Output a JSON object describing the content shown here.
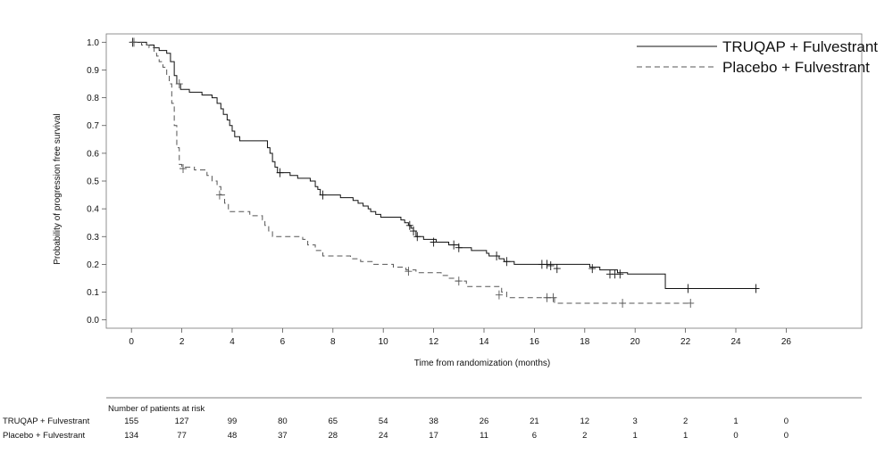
{
  "chart_data": {
    "type": "line",
    "xlabel": "Time from randomization (months)",
    "ylabel": "Probability of progression free survival",
    "xlim": [
      -1,
      29
    ],
    "ylim": [
      -0.03,
      1.03
    ],
    "x_ticks": [
      0,
      2,
      4,
      6,
      8,
      10,
      12,
      14,
      16,
      18,
      20,
      22,
      24,
      26
    ],
    "y_ticks": [
      "0.0",
      "0.1",
      "0.2",
      "0.3",
      "0.4",
      "0.5",
      "0.6",
      "0.7",
      "0.8",
      "0.9",
      "1.0"
    ],
    "legend_position": "top-right",
    "series": [
      {
        "name": "TRUQAP + Fulvestrant",
        "style": "solid",
        "color": "#111111",
        "steps": [
          [
            0,
            1.0
          ],
          [
            0.6,
            0.99
          ],
          [
            0.9,
            0.98
          ],
          [
            1.1,
            0.97
          ],
          [
            1.4,
            0.96
          ],
          [
            1.55,
            0.93
          ],
          [
            1.7,
            0.88
          ],
          [
            1.8,
            0.85
          ],
          [
            1.95,
            0.83
          ],
          [
            2.3,
            0.82
          ],
          [
            2.8,
            0.81
          ],
          [
            3.2,
            0.8
          ],
          [
            3.4,
            0.78
          ],
          [
            3.55,
            0.76
          ],
          [
            3.65,
            0.74
          ],
          [
            3.8,
            0.72
          ],
          [
            3.9,
            0.7
          ],
          [
            4.0,
            0.68
          ],
          [
            4.1,
            0.66
          ],
          [
            4.3,
            0.645
          ],
          [
            5.4,
            0.62
          ],
          [
            5.5,
            0.6
          ],
          [
            5.6,
            0.57
          ],
          [
            5.7,
            0.55
          ],
          [
            5.8,
            0.53
          ],
          [
            6.3,
            0.52
          ],
          [
            6.6,
            0.51
          ],
          [
            7.1,
            0.5
          ],
          [
            7.3,
            0.48
          ],
          [
            7.4,
            0.47
          ],
          [
            7.5,
            0.45
          ],
          [
            8.3,
            0.44
          ],
          [
            8.8,
            0.43
          ],
          [
            9.0,
            0.42
          ],
          [
            9.2,
            0.41
          ],
          [
            9.4,
            0.4
          ],
          [
            9.5,
            0.39
          ],
          [
            9.7,
            0.38
          ],
          [
            9.9,
            0.37
          ],
          [
            10.7,
            0.36
          ],
          [
            10.85,
            0.35
          ],
          [
            11.0,
            0.34
          ],
          [
            11.1,
            0.33
          ],
          [
            11.2,
            0.32
          ],
          [
            11.3,
            0.3
          ],
          [
            11.6,
            0.29
          ],
          [
            12.1,
            0.28
          ],
          [
            12.6,
            0.27
          ],
          [
            13.0,
            0.26
          ],
          [
            13.5,
            0.25
          ],
          [
            14.1,
            0.24
          ],
          [
            14.2,
            0.23
          ],
          [
            14.6,
            0.22
          ],
          [
            14.8,
            0.21
          ],
          [
            15.2,
            0.2
          ],
          [
            18.2,
            0.19
          ],
          [
            18.6,
            0.18
          ],
          [
            19.3,
            0.17
          ],
          [
            19.7,
            0.165
          ],
          [
            21.2,
            0.113
          ],
          [
            24.9,
            0.113
          ]
        ],
        "censor": [
          [
            0.05,
            1.0
          ],
          [
            5.9,
            0.53
          ],
          [
            7.6,
            0.45
          ],
          [
            11.05,
            0.34
          ],
          [
            11.2,
            0.32
          ],
          [
            11.35,
            0.3
          ],
          [
            12.0,
            0.28
          ],
          [
            12.8,
            0.27
          ],
          [
            13.0,
            0.26
          ],
          [
            14.5,
            0.23
          ],
          [
            14.9,
            0.21
          ],
          [
            16.3,
            0.2
          ],
          [
            16.5,
            0.2
          ],
          [
            16.65,
            0.195
          ],
          [
            16.9,
            0.185
          ],
          [
            18.3,
            0.185
          ],
          [
            19.0,
            0.165
          ],
          [
            19.2,
            0.165
          ],
          [
            19.4,
            0.165
          ],
          [
            22.1,
            0.113
          ],
          [
            24.8,
            0.113
          ]
        ]
      },
      {
        "name": "Placebo + Fulvestrant",
        "style": "dashed",
        "color": "#555555",
        "steps": [
          [
            0,
            1.0
          ],
          [
            0.4,
            0.99
          ],
          [
            0.7,
            0.98
          ],
          [
            0.9,
            0.96
          ],
          [
            1.0,
            0.95
          ],
          [
            1.1,
            0.93
          ],
          [
            1.25,
            0.91
          ],
          [
            1.4,
            0.88
          ],
          [
            1.5,
            0.85
          ],
          [
            1.6,
            0.78
          ],
          [
            1.7,
            0.7
          ],
          [
            1.8,
            0.62
          ],
          [
            1.9,
            0.56
          ],
          [
            2.0,
            0.55
          ],
          [
            2.5,
            0.54
          ],
          [
            3.0,
            0.52
          ],
          [
            3.2,
            0.5
          ],
          [
            3.4,
            0.48
          ],
          [
            3.55,
            0.45
          ],
          [
            3.7,
            0.42
          ],
          [
            3.85,
            0.39
          ],
          [
            4.7,
            0.375
          ],
          [
            5.2,
            0.36
          ],
          [
            5.3,
            0.34
          ],
          [
            5.45,
            0.32
          ],
          [
            5.6,
            0.3
          ],
          [
            6.8,
            0.29
          ],
          [
            7.0,
            0.27
          ],
          [
            7.3,
            0.25
          ],
          [
            7.6,
            0.23
          ],
          [
            8.7,
            0.22
          ],
          [
            9.1,
            0.21
          ],
          [
            9.6,
            0.2
          ],
          [
            10.4,
            0.19
          ],
          [
            10.9,
            0.18
          ],
          [
            11.3,
            0.17
          ],
          [
            12.3,
            0.16
          ],
          [
            12.6,
            0.15
          ],
          [
            12.8,
            0.14
          ],
          [
            13.3,
            0.12
          ],
          [
            14.7,
            0.1
          ],
          [
            14.9,
            0.08
          ],
          [
            16.8,
            0.06
          ],
          [
            22.3,
            0.06
          ]
        ],
        "censor": [
          [
            0.1,
            1.0
          ],
          [
            1.9,
            0.85
          ],
          [
            2.05,
            0.545
          ],
          [
            3.5,
            0.45
          ],
          [
            11.0,
            0.175
          ],
          [
            13.0,
            0.14
          ],
          [
            14.6,
            0.09
          ],
          [
            16.5,
            0.08
          ],
          [
            16.75,
            0.08
          ],
          [
            19.5,
            0.06
          ],
          [
            22.2,
            0.06
          ]
        ]
      }
    ],
    "risk_table": {
      "title": "Number of patients at risk",
      "times": [
        0,
        2,
        4,
        6,
        8,
        10,
        12,
        14,
        16,
        18,
        20,
        22,
        24,
        26
      ],
      "rows": [
        {
          "label": "TRUQAP + Fulvestrant",
          "counts": [
            "155",
            "127",
            "99",
            "80",
            "65",
            "54",
            "38",
            "26",
            "21",
            "12",
            "3",
            "2",
            "1",
            "0"
          ]
        },
        {
          "label": "Placebo + Fulvestrant",
          "counts": [
            "134",
            "77",
            "48",
            "37",
            "28",
            "24",
            "17",
            "11",
            "6",
            "2",
            "1",
            "1",
            "0",
            "0"
          ]
        }
      ]
    }
  }
}
